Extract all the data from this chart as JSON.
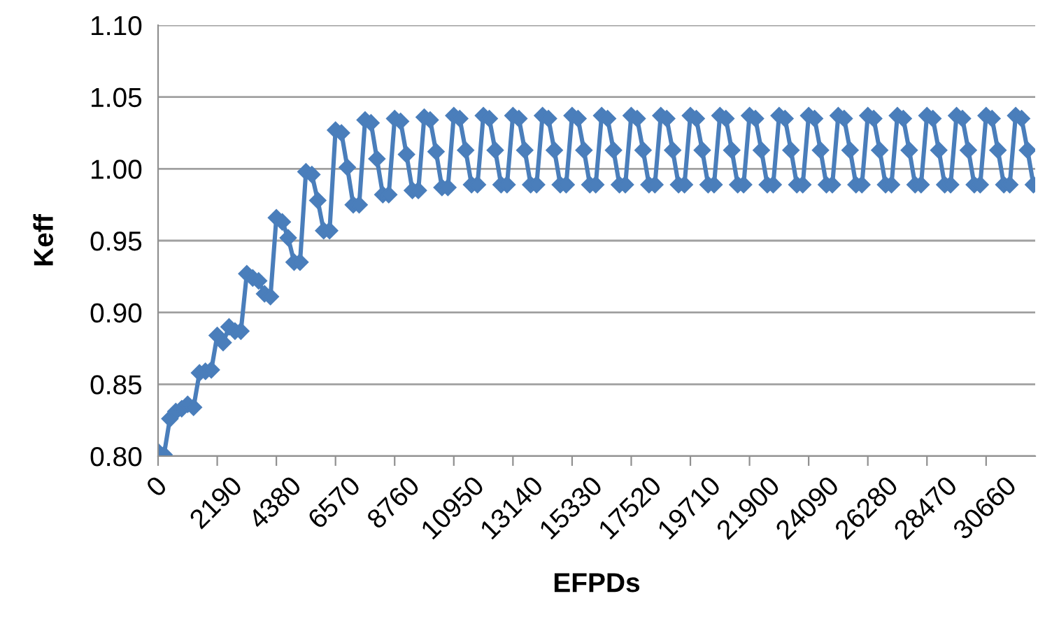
{
  "chart_data": {
    "type": "line",
    "xlabel": "EFPDs",
    "ylabel": "Keff",
    "categories": [
      "0",
      null,
      null,
      null,
      null,
      null,
      null,
      null,
      null,
      null,
      "2190",
      null,
      null,
      null,
      null,
      null,
      null,
      null,
      null,
      null,
      "4380",
      null,
      null,
      null,
      null,
      null,
      null,
      null,
      null,
      null,
      "6570",
      null,
      null,
      null,
      null,
      null,
      null,
      null,
      null,
      null,
      "8760",
      null,
      null,
      null,
      null,
      null,
      null,
      null,
      null,
      null,
      "10950",
      null,
      null,
      null,
      null,
      null,
      null,
      null,
      null,
      null,
      "13140",
      null,
      null,
      null,
      null,
      null,
      null,
      null,
      null,
      null,
      "15330",
      null,
      null,
      null,
      null,
      null,
      null,
      null,
      null,
      null,
      "17520",
      null,
      null,
      null,
      null,
      null,
      null,
      null,
      null,
      null,
      "19710",
      null,
      null,
      null,
      null,
      null,
      null,
      null,
      null,
      null,
      "21900",
      null,
      null,
      null,
      null,
      null,
      null,
      null,
      null,
      null,
      "24090",
      null,
      null,
      null,
      null,
      null,
      null,
      null,
      null,
      null,
      "26280",
      null,
      null,
      null,
      null,
      null,
      null,
      null,
      null,
      null,
      "28470",
      null,
      null,
      null,
      null,
      null,
      null,
      null,
      null,
      null,
      "30660",
      null,
      null,
      null,
      null,
      null,
      null,
      null,
      null
    ],
    "series": [
      {
        "color": "#4a7ebb",
        "values": [
          0.803,
          0.801,
          0.826,
          0.831,
          0.833,
          0.836,
          0.834,
          0.858,
          0.859,
          0.86,
          0.884,
          0.879,
          0.89,
          0.887,
          0.887,
          0.927,
          0.924,
          0.922,
          0.913,
          0.911,
          0.966,
          0.963,
          0.952,
          0.935,
          0.935,
          0.998,
          0.996,
          0.978,
          0.957,
          0.957,
          1.027,
          1.025,
          1.001,
          0.975,
          0.975,
          1.034,
          1.032,
          1.007,
          0.982,
          0.982,
          1.035,
          1.033,
          1.01,
          0.985,
          0.985,
          1.036,
          1.034,
          1.012,
          0.987,
          0.987,
          1.037,
          1.035,
          1.013,
          0.989,
          0.989,
          1.037,
          1.035,
          1.013,
          0.989,
          0.989,
          1.037,
          1.035,
          1.013,
          0.989,
          0.989,
          1.037,
          1.035,
          1.013,
          0.989,
          0.989,
          1.037,
          1.035,
          1.013,
          0.989,
          0.989,
          1.037,
          1.035,
          1.013,
          0.989,
          0.989,
          1.037,
          1.035,
          1.013,
          0.989,
          0.989,
          1.037,
          1.035,
          1.013,
          0.989,
          0.989,
          1.037,
          1.035,
          1.013,
          0.989,
          0.989,
          1.037,
          1.035,
          1.013,
          0.989,
          0.989,
          1.037,
          1.035,
          1.013,
          0.989,
          0.989,
          1.037,
          1.035,
          1.013,
          0.989,
          0.989,
          1.037,
          1.035,
          1.013,
          0.989,
          0.989,
          1.037,
          1.035,
          1.013,
          0.989,
          0.989,
          1.037,
          1.035,
          1.013,
          0.989,
          0.989,
          1.037,
          1.035,
          1.013,
          0.989,
          0.989,
          1.037,
          1.035,
          1.013,
          0.989,
          0.989,
          1.037,
          1.035,
          1.013,
          0.989,
          0.989,
          1.037,
          1.035,
          1.013,
          0.989,
          0.989,
          1.037,
          1.035,
          1.013,
          0.989
        ]
      }
    ],
    "ylim": [
      0.8,
      1.1
    ],
    "yticks": [
      {
        "value": 0.8,
        "label": "0.80"
      },
      {
        "value": 0.85,
        "label": "0.85"
      },
      {
        "value": 0.9,
        "label": "0.90"
      },
      {
        "value": 0.95,
        "label": "0.95"
      },
      {
        "value": 1.0,
        "label": "1.00"
      },
      {
        "value": 1.05,
        "label": "1.05"
      },
      {
        "value": 1.1,
        "label": "1.10"
      }
    ],
    "grid": "y",
    "legend": false,
    "marker": "diamond",
    "line_style": "solid"
  }
}
